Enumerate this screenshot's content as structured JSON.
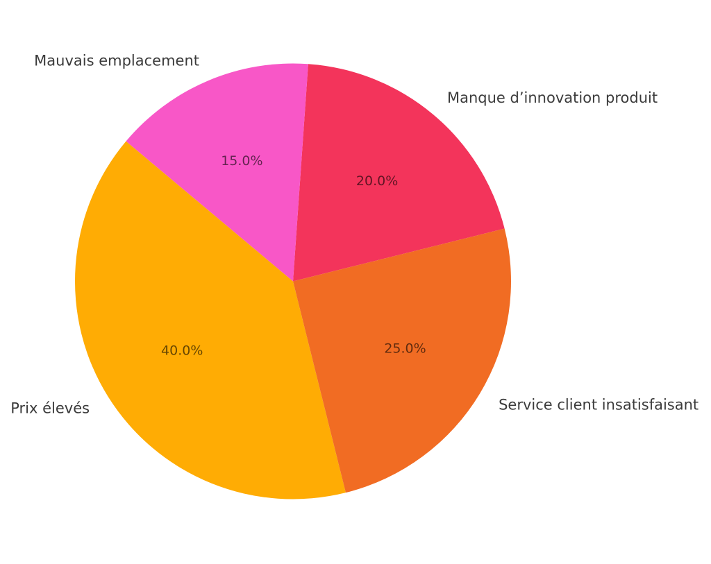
{
  "chart_data": {
    "type": "pie",
    "title": "",
    "background": "#ffffff",
    "label_color": "#3b3b3b",
    "pct_color": "rgba(0,0,0,0.6)",
    "start_angle": 14,
    "counterclockwise": true,
    "label_distance": 1.1,
    "pct_distance": 0.6,
    "legend": false,
    "slices": [
      {
        "id": "manque-innovation-produit",
        "label": "Manque d’innovation produit",
        "value": 20.0,
        "pct_label": "20.0%",
        "color": "#f3345b"
      },
      {
        "id": "mauvais-emplacement",
        "label": "Mauvais emplacement",
        "value": 15.0,
        "pct_label": "15.0%",
        "color": "#f857c7"
      },
      {
        "id": "prix-eleves",
        "label": "Prix élevés",
        "value": 40.0,
        "pct_label": "40.0%",
        "color": "#ffac04"
      },
      {
        "id": "service-client-insatisfaisant",
        "label": "Service client insatisfaisant",
        "value": 25.0,
        "pct_label": "25.0%",
        "color": "#f16c23"
      }
    ]
  }
}
